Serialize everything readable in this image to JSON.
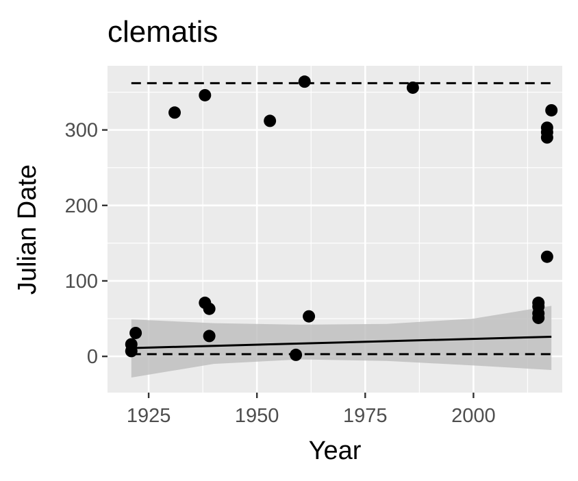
{
  "chart_data": {
    "type": "scatter",
    "title": "clematis",
    "xlabel": "Year",
    "ylabel": "Julian Date",
    "xlim": [
      1915.5,
      2020.5
    ],
    "ylim": [
      -48,
      385
    ],
    "x_ticks": [
      1925,
      1950,
      1975,
      2000
    ],
    "y_ticks": [
      0,
      100,
      200,
      300
    ],
    "grid": true,
    "legend": "none",
    "colors": {
      "panel": "#ebebeb",
      "grid": "#ffffff",
      "points": "#000000",
      "ribbon": "#bdbdbd",
      "tick_text": "#4d4d4d"
    },
    "points": [
      {
        "x": 1921,
        "y": 16
      },
      {
        "x": 1921,
        "y": 7
      },
      {
        "x": 1922,
        "y": 31
      },
      {
        "x": 1931,
        "y": 323
      },
      {
        "x": 1938,
        "y": 346
      },
      {
        "x": 1938,
        "y": 71
      },
      {
        "x": 1939,
        "y": 63
      },
      {
        "x": 1939,
        "y": 27
      },
      {
        "x": 1953,
        "y": 312
      },
      {
        "x": 1959,
        "y": 2
      },
      {
        "x": 1961,
        "y": 364
      },
      {
        "x": 1962,
        "y": 53
      },
      {
        "x": 1986,
        "y": 356
      },
      {
        "x": 2015,
        "y": 71
      },
      {
        "x": 2015,
        "y": 66
      },
      {
        "x": 2015,
        "y": 57
      },
      {
        "x": 2015,
        "y": 51
      },
      {
        "x": 2017,
        "y": 303
      },
      {
        "x": 2017,
        "y": 297
      },
      {
        "x": 2017,
        "y": 290
      },
      {
        "x": 2017,
        "y": 132
      },
      {
        "x": 2018,
        "y": 326
      }
    ],
    "trend_line": {
      "x": [
        1921,
        2018
      ],
      "y": [
        11,
        26
      ],
      "ribbon_upper": [
        49,
        44,
        42,
        43,
        50,
        67
      ],
      "ribbon_lower": [
        -28,
        -10,
        -4,
        -6,
        -12,
        -18
      ],
      "ribbon_x": [
        1921,
        1940,
        1960,
        1980,
        2000,
        2018
      ]
    },
    "dashed_upper": {
      "x": [
        1921,
        2018
      ],
      "y": [
        362,
        362
      ]
    },
    "dashed_lower": {
      "x": [
        1921,
        2018
      ],
      "y": [
        3,
        3
      ]
    }
  }
}
